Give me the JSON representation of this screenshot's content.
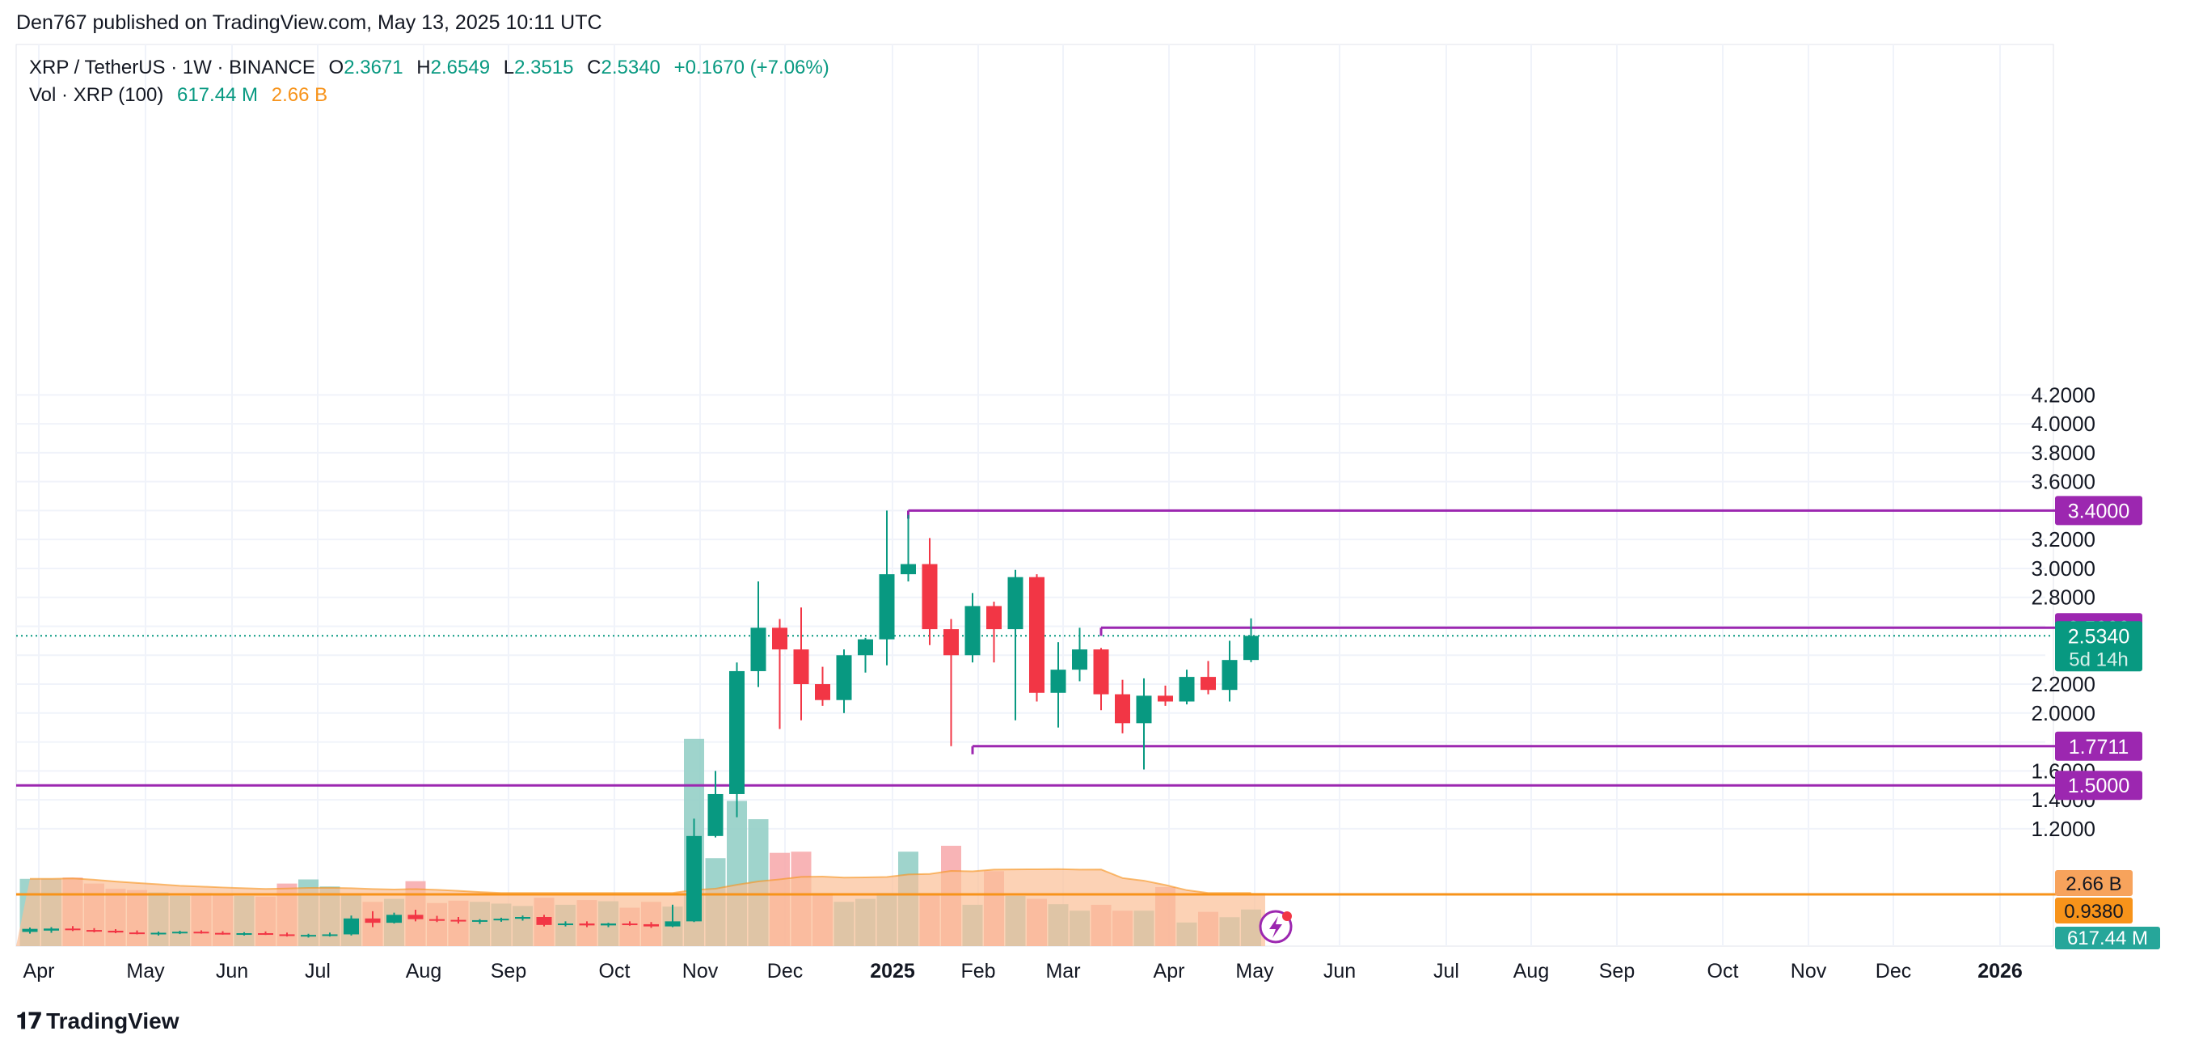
{
  "header": {
    "published": "Den767 published on TradingView.com, May 13, 2025 10:11 UTC"
  },
  "legend": {
    "symbol": "XRP / TetherUS · 1W · BINANCE",
    "o_label": "O",
    "o_value": "2.3671",
    "h_label": "H",
    "h_value": "2.6549",
    "l_label": "L",
    "l_value": "2.3515",
    "c_label": "C",
    "c_value": "2.5340",
    "change": "+0.1670 (+7.06%)",
    "vol_label": "Vol · XRP (100)",
    "vol_value": "617.44 M",
    "vol_ma_value": "2.66 B"
  },
  "footer": {
    "brand": "TradingView"
  },
  "colors": {
    "up": "#089981",
    "down": "#f23645",
    "level": "#9c27b0",
    "vol_up": "#8ecdc3",
    "vol_down": "#f7a7a9",
    "vol_ma": "#f7931a",
    "grid": "#f0f3fa"
  },
  "chart_data": {
    "type": "candlestick",
    "y_axis": {
      "ticks": [
        "1.2000",
        "1.4000",
        "1.6000",
        "2.0000",
        "2.2000",
        "2.8000",
        "3.0000",
        "3.2000",
        "3.6000",
        "3.8000",
        "4.0000",
        "4.2000"
      ],
      "range": [
        0.9,
        4.3
      ]
    },
    "x_axis": {
      "labels": [
        "Apr",
        "May",
        "Jun",
        "Jul",
        "Aug",
        "Sep",
        "Oct",
        "Nov",
        "Dec",
        "2025",
        "Feb",
        "Mar",
        "Apr",
        "May",
        "Jun",
        "Jul",
        "Aug",
        "Sep",
        "Oct",
        "Nov",
        "Dec",
        "2026"
      ]
    },
    "candles": [
      {
        "o": 0.487,
        "h": 0.517,
        "l": 0.475,
        "c": 0.508
      },
      {
        "o": 0.496,
        "h": 0.52,
        "l": 0.481,
        "c": 0.51
      },
      {
        "o": 0.51,
        "h": 0.527,
        "l": 0.493,
        "c": 0.5
      },
      {
        "o": 0.5,
        "h": 0.513,
        "l": 0.484,
        "c": 0.495
      },
      {
        "o": 0.495,
        "h": 0.506,
        "l": 0.478,
        "c": 0.483
      },
      {
        "o": 0.483,
        "h": 0.497,
        "l": 0.47,
        "c": 0.477
      },
      {
        "o": 0.477,
        "h": 0.489,
        "l": 0.462,
        "c": 0.481
      },
      {
        "o": 0.481,
        "h": 0.495,
        "l": 0.472,
        "c": 0.488
      },
      {
        "o": 0.488,
        "h": 0.498,
        "l": 0.475,
        "c": 0.48
      },
      {
        "o": 0.48,
        "h": 0.492,
        "l": 0.468,
        "c": 0.472
      },
      {
        "o": 0.472,
        "h": 0.485,
        "l": 0.462,
        "c": 0.478
      },
      {
        "o": 0.478,
        "h": 0.49,
        "l": 0.466,
        "c": 0.47
      },
      {
        "o": 0.47,
        "h": 0.482,
        "l": 0.455,
        "c": 0.46
      },
      {
        "o": 0.46,
        "h": 0.474,
        "l": 0.448,
        "c": 0.466
      },
      {
        "o": 0.466,
        "h": 0.482,
        "l": 0.455,
        "c": 0.47
      },
      {
        "o": 0.47,
        "h": 0.6,
        "l": 0.462,
        "c": 0.58
      },
      {
        "o": 0.58,
        "h": 0.63,
        "l": 0.52,
        "c": 0.55
      },
      {
        "o": 0.55,
        "h": 0.62,
        "l": 0.545,
        "c": 0.605
      },
      {
        "o": 0.605,
        "h": 0.64,
        "l": 0.56,
        "c": 0.575
      },
      {
        "o": 0.575,
        "h": 0.598,
        "l": 0.555,
        "c": 0.57
      },
      {
        "o": 0.57,
        "h": 0.59,
        "l": 0.545,
        "c": 0.56
      },
      {
        "o": 0.56,
        "h": 0.575,
        "l": 0.542,
        "c": 0.568
      },
      {
        "o": 0.568,
        "h": 0.585,
        "l": 0.557,
        "c": 0.578
      },
      {
        "o": 0.578,
        "h": 0.6,
        "l": 0.565,
        "c": 0.59
      },
      {
        "o": 0.59,
        "h": 0.605,
        "l": 0.525,
        "c": 0.535
      },
      {
        "o": 0.535,
        "h": 0.56,
        "l": 0.525,
        "c": 0.545
      },
      {
        "o": 0.545,
        "h": 0.56,
        "l": 0.52,
        "c": 0.532
      },
      {
        "o": 0.532,
        "h": 0.55,
        "l": 0.52,
        "c": 0.545
      },
      {
        "o": 0.545,
        "h": 0.56,
        "l": 0.53,
        "c": 0.54
      },
      {
        "o": 0.54,
        "h": 0.555,
        "l": 0.515,
        "c": 0.525
      },
      {
        "o": 0.525,
        "h": 0.675,
        "l": 0.52,
        "c": 0.56
      },
      {
        "o": 0.56,
        "h": 1.27,
        "l": 0.555,
        "c": 1.15
      },
      {
        "o": 1.15,
        "h": 1.6,
        "l": 1.14,
        "c": 1.44
      },
      {
        "o": 1.44,
        "h": 2.35,
        "l": 1.28,
        "c": 2.29
      },
      {
        "o": 2.29,
        "h": 2.91,
        "l": 2.18,
        "c": 2.59
      },
      {
        "o": 2.59,
        "h": 2.65,
        "l": 1.89,
        "c": 2.44
      },
      {
        "o": 2.44,
        "h": 2.73,
        "l": 1.95,
        "c": 2.2
      },
      {
        "o": 2.2,
        "h": 2.32,
        "l": 2.05,
        "c": 2.09
      },
      {
        "o": 2.09,
        "h": 2.44,
        "l": 2.0,
        "c": 2.4
      },
      {
        "o": 2.4,
        "h": 2.52,
        "l": 2.28,
        "c": 2.51
      },
      {
        "o": 2.51,
        "h": 3.4,
        "l": 2.33,
        "c": 2.96
      },
      {
        "o": 2.96,
        "h": 3.37,
        "l": 2.91,
        "c": 3.03
      },
      {
        "o": 3.03,
        "h": 3.21,
        "l": 2.47,
        "c": 2.58
      },
      {
        "o": 2.58,
        "h": 2.65,
        "l": 1.771,
        "c": 2.4
      },
      {
        "o": 2.4,
        "h": 2.83,
        "l": 2.35,
        "c": 2.74
      },
      {
        "o": 2.74,
        "h": 2.77,
        "l": 2.35,
        "c": 2.58
      },
      {
        "o": 2.58,
        "h": 2.99,
        "l": 1.95,
        "c": 2.94
      },
      {
        "o": 2.94,
        "h": 2.96,
        "l": 2.08,
        "c": 2.14
      },
      {
        "o": 2.14,
        "h": 2.49,
        "l": 1.9,
        "c": 2.3
      },
      {
        "o": 2.3,
        "h": 2.59,
        "l": 2.22,
        "c": 2.44
      },
      {
        "o": 2.44,
        "h": 2.45,
        "l": 2.02,
        "c": 2.13
      },
      {
        "o": 2.13,
        "h": 2.23,
        "l": 1.86,
        "c": 1.93
      },
      {
        "o": 1.93,
        "h": 2.24,
        "l": 1.61,
        "c": 2.12
      },
      {
        "o": 2.12,
        "h": 2.19,
        "l": 2.05,
        "c": 2.08
      },
      {
        "o": 2.08,
        "h": 2.3,
        "l": 2.06,
        "c": 2.25
      },
      {
        "o": 2.25,
        "h": 2.36,
        "l": 2.13,
        "c": 2.16
      },
      {
        "o": 2.16,
        "h": 2.5,
        "l": 2.08,
        "c": 2.367
      },
      {
        "o": 2.367,
        "h": 2.655,
        "l": 2.352,
        "c": 2.534
      }
    ],
    "volume": [
      1.14,
      1.14,
      1.16,
      1.06,
      0.97,
      0.95,
      0.91,
      0.85,
      0.9,
      0.86,
      0.85,
      0.84,
      1.06,
      1.13,
      1.01,
      0.88,
      0.75,
      0.8,
      1.1,
      0.73,
      0.77,
      0.75,
      0.72,
      0.68,
      0.82,
      0.7,
      0.78,
      0.76,
      0.65,
      0.75,
      0.67,
      3.51,
      1.49,
      2.46,
      2.15,
      1.58,
      1.6,
      0.9,
      0.75,
      0.8,
      0.9,
      1.6,
      0.9,
      1.7,
      0.7,
      1.27,
      0.85,
      0.8,
      0.71,
      0.6,
      0.7,
      0.6,
      0.6,
      1.0,
      0.4,
      0.58,
      0.49,
      0.62
    ],
    "volume_ma_value": 2.66,
    "levels": [
      {
        "value": 3.4,
        "label": "3.4000",
        "start_index": 41
      },
      {
        "value": 2.59,
        "label": "2.5900",
        "start_index": 50
      },
      {
        "value": 1.7711,
        "label": "1.7711",
        "start_index": 44
      },
      {
        "value": 1.5,
        "label": "1.5000",
        "start_index": 0
      }
    ],
    "last_price": {
      "value": 2.534,
      "label": "2.5340",
      "countdown": "5d 14h"
    },
    "vol_ma_label": "2.66 B",
    "vol_ma_level": {
      "value": 0.938,
      "label": "0.9380"
    },
    "volume_label": "617.44 M"
  }
}
